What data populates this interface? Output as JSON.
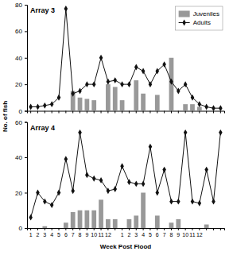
{
  "chart_data": [
    {
      "type": "bar",
      "title": "Array 3",
      "ylabel": "No. of fish",
      "categories": [
        "1",
        "2",
        "3",
        "4",
        "5",
        "6",
        "7",
        "8",
        "9",
        "10",
        "11",
        "12",
        null,
        "1",
        "2",
        "3",
        "4",
        "5",
        "6",
        "7",
        "8",
        "9",
        "10",
        "11",
        "12",
        null,
        null,
        null
      ],
      "series": [
        {
          "name": "Juveniles",
          "type": "bar",
          "color": "#999999",
          "values": [
            0,
            0,
            0,
            0,
            0,
            0,
            15,
            10,
            9,
            8,
            0,
            20,
            18,
            8,
            0,
            23,
            13,
            0,
            12,
            0,
            40,
            0,
            5,
            5,
            3,
            0,
            0,
            0
          ]
        },
        {
          "name": "Adults",
          "type": "line",
          "color": "#111111",
          "marker": "diamond",
          "values": [
            3,
            3,
            4,
            5,
            10,
            77,
            13,
            15,
            20,
            20,
            40,
            22,
            23,
            20,
            20,
            33,
            30,
            20,
            30,
            35,
            22,
            15,
            20,
            10,
            5,
            3,
            2,
            2
          ]
        }
      ],
      "ylim": [
        0,
        80
      ],
      "yticks": [
        0,
        20,
        40,
        60,
        80
      ],
      "grid": false,
      "legend": "upper right",
      "tick_labels": "y"
    },
    {
      "type": "bar",
      "title": "Array 4",
      "xlabel": "Week Post Flood",
      "categories": [
        "1",
        "2",
        "3",
        "4",
        "5",
        "6",
        "7",
        "8",
        "9",
        "10",
        "11",
        "12",
        null,
        "1",
        "2",
        "3",
        "4",
        "5",
        "6",
        "7",
        "8",
        "9",
        "10",
        "11",
        "12",
        null,
        null,
        null
      ],
      "series": [
        {
          "name": "Juveniles",
          "type": "bar",
          "color": "#999999",
          "values": [
            0,
            0,
            1,
            0,
            0,
            3,
            9,
            10,
            10,
            10,
            16,
            5,
            5,
            0,
            5,
            7,
            20,
            0,
            7,
            0,
            3,
            5,
            0,
            0,
            0,
            2,
            0,
            0
          ]
        },
        {
          "name": "Adults",
          "type": "line",
          "color": "#111111",
          "marker": "diamond",
          "values": [
            6,
            20,
            15,
            13,
            20,
            39,
            21,
            54,
            30,
            28,
            27,
            21,
            22,
            35,
            26,
            25,
            25,
            46,
            20,
            33,
            15,
            15,
            54,
            15,
            14,
            33,
            15,
            54
          ]
        }
      ],
      "ylim": [
        0,
        60
      ],
      "yticks": [
        0,
        20,
        40,
        60
      ],
      "grid": false
    }
  ]
}
